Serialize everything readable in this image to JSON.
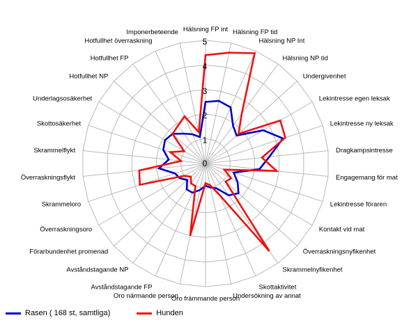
{
  "chart_data": {
    "type": "radar",
    "categories": [
      "Hälsning FP int",
      "Hälsning FP tid",
      "Hälsning NP Int",
      "Hälsning NP tid",
      "Undergivenhet",
      "Lekintresse egen leksak",
      "Lekintresse ny leksak",
      "Dragkampsintresse",
      "Engagemang för mat",
      "Lekintresse föraren",
      "Kontakt vid mat",
      "Överraskningsnyfikenhet",
      "Skrammelnyfikenhet",
      "Skottaktivitet",
      "Undersökning av annat",
      "Oro främmande person",
      "Oro närmande person",
      "Avståndstagande FP",
      "Avståndstagande NP",
      "Förarbundenhet promenad",
      "Överraskningsoro",
      "Skrammeloro",
      "Överraskningsflykt",
      "Skrammelflykt",
      "Skottosäkerhet",
      "Underlagsosäkerhet",
      "Hotfullhet NP",
      "Hotfullhet FP",
      "Hotfullhet överraskning",
      "Imponerbeteende"
    ],
    "rlim": [
      0,
      5
    ],
    "ticks": [
      0,
      1,
      2,
      3,
      4,
      5
    ],
    "series": [
      {
        "name": "Rasen ( 168 st, samtliga)",
        "color": "#0000cc",
        "values": [
          2.5,
          2.6,
          2.5,
          1.9,
          1.7,
          2.7,
          3.3,
          2.6,
          2.2,
          1.2,
          1.5,
          1.8,
          1.6,
          1.1,
          1.0,
          0.9,
          1.1,
          1.3,
          1.3,
          1.0,
          1.2,
          1.3,
          1.9,
          1.5,
          1.8,
          1.9,
          1.8,
          1.5,
          1.3,
          1.1
        ]
      },
      {
        "name": "Hunden",
        "color": "#ee1111",
        "values": [
          4.4,
          4.6,
          4.9,
          2.5,
          1.8,
          3.5,
          3.4,
          2.3,
          2.9,
          0.8,
          1.2,
          1.1,
          4.4,
          1.4,
          0.9,
          0.8,
          3.0,
          1.0,
          1.0,
          0.8,
          1.0,
          2.8,
          2.7,
          1.0,
          1.5,
          1.0,
          1.8,
          1.9,
          2.1,
          1.3
        ]
      }
    ]
  },
  "legend": [
    {
      "label": "Rasen ( 168 st, samtliga)",
      "color": "#0000cc"
    },
    {
      "label": "Hunden",
      "color": "#ee1111"
    }
  ]
}
